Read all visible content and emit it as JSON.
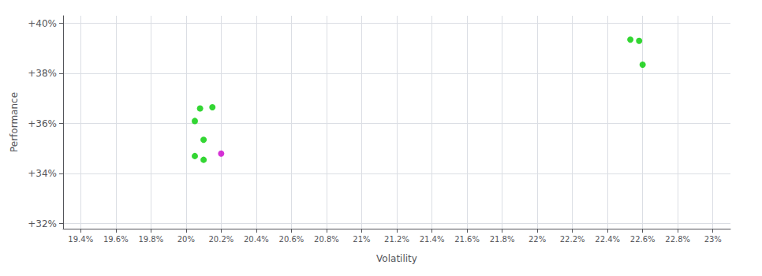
{
  "chart_data": {
    "type": "scatter",
    "xlabel": "Volatility",
    "ylabel": "Performance",
    "xlim": [
      0.193,
      0.231
    ],
    "ylim": [
      0.318,
      0.403
    ],
    "xticks": [
      {
        "value": 0.194,
        "label": "19.4%"
      },
      {
        "value": 0.196,
        "label": "19.6%"
      },
      {
        "value": 0.198,
        "label": "19.8%"
      },
      {
        "value": 0.2,
        "label": "20%"
      },
      {
        "value": 0.202,
        "label": "20.2%"
      },
      {
        "value": 0.204,
        "label": "20.4%"
      },
      {
        "value": 0.206,
        "label": "20.6%"
      },
      {
        "value": 0.208,
        "label": "20.8%"
      },
      {
        "value": 0.21,
        "label": "21%"
      },
      {
        "value": 0.212,
        "label": "21.2%"
      },
      {
        "value": 0.214,
        "label": "21.4%"
      },
      {
        "value": 0.216,
        "label": "21.6%"
      },
      {
        "value": 0.218,
        "label": "21.8%"
      },
      {
        "value": 0.22,
        "label": "22%"
      },
      {
        "value": 0.222,
        "label": "22.2%"
      },
      {
        "value": 0.224,
        "label": "22.4%"
      },
      {
        "value": 0.226,
        "label": "22.6%"
      },
      {
        "value": 0.228,
        "label": "22.8%"
      },
      {
        "value": 0.23,
        "label": "23%"
      }
    ],
    "yticks": [
      {
        "value": 0.32,
        "label": "+32%"
      },
      {
        "value": 0.34,
        "label": "+34%"
      },
      {
        "value": 0.36,
        "label": "+36%"
      },
      {
        "value": 0.38,
        "label": "+38%"
      },
      {
        "value": 0.4,
        "label": "+40%"
      }
    ],
    "grid": true,
    "series": [
      {
        "color": "#00cc00",
        "x": [
          0.2008,
          0.2015,
          0.2005,
          0.201,
          0.2005,
          0.201,
          0.2253,
          0.2258,
          0.226
        ],
        "values": [
          0.366,
          0.3665,
          0.361,
          0.3535,
          0.347,
          0.3455,
          0.3935,
          0.393,
          0.3835
        ]
      },
      {
        "color": "#cc00cc",
        "x": [
          0.202
        ],
        "values": [
          0.348
        ]
      }
    ]
  }
}
